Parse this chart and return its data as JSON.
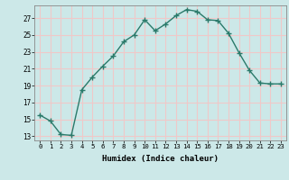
{
  "x": [
    0,
    1,
    2,
    3,
    4,
    5,
    6,
    7,
    8,
    9,
    10,
    11,
    12,
    13,
    14,
    15,
    16,
    17,
    18,
    19,
    20,
    21,
    22,
    23
  ],
  "y": [
    15.5,
    14.8,
    13.2,
    13.1,
    18.5,
    20.0,
    21.3,
    22.5,
    24.2,
    25.0,
    26.8,
    25.5,
    26.3,
    27.3,
    28.0,
    27.8,
    26.8,
    26.7,
    25.2,
    22.9,
    20.8,
    19.3,
    19.2,
    19.2
  ],
  "line_color": "#2a7a6a",
  "marker": "+",
  "marker_size": 4,
  "marker_lw": 1.0,
  "bg_color": "#cce8e8",
  "grid_color": "#f0c8c8",
  "xlabel": "Humidex (Indice chaleur)",
  "xlim": [
    -0.5,
    23.5
  ],
  "ylim": [
    12.5,
    28.5
  ],
  "yticks": [
    13,
    15,
    17,
    19,
    21,
    23,
    25,
    27
  ],
  "xticks": [
    0,
    1,
    2,
    3,
    4,
    5,
    6,
    7,
    8,
    9,
    10,
    11,
    12,
    13,
    14,
    15,
    16,
    17,
    18,
    19,
    20,
    21,
    22,
    23
  ]
}
